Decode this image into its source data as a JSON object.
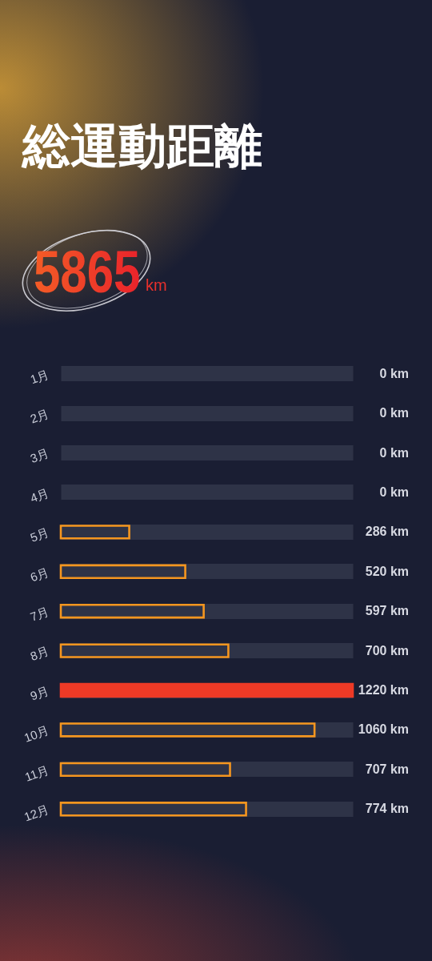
{
  "chart_data": {
    "type": "bar",
    "orientation": "horizontal",
    "title": "総運動距離",
    "annotations": [
      "5865",
      "km"
    ],
    "categories": [
      "1月",
      "2月",
      "3月",
      "4月",
      "5月",
      "6月",
      "7月",
      "8月",
      "9月",
      "10月",
      "11月",
      "12月"
    ],
    "values": [
      0,
      0,
      0,
      0,
      286,
      520,
      597,
      700,
      1220,
      1060,
      707,
      774
    ],
    "value_labels": [
      "0 km",
      "0 km",
      "0 km",
      "0 km",
      "286 km",
      "520 km",
      "597 km",
      "700 km",
      "1220 km",
      "1060 km",
      "707 km",
      "774 km"
    ],
    "colors": [
      "#f5961f",
      "#f5961f",
      "#f5961f",
      "#f5961f",
      "#f5961f",
      "#f5961f",
      "#f5961f",
      "#f5961f",
      "#ee3a26",
      "#f5961f",
      "#f5961f",
      "#f5961f"
    ],
    "xlim": [
      0,
      1220
    ],
    "grid": "y",
    "tick_labels": "y"
  }
}
